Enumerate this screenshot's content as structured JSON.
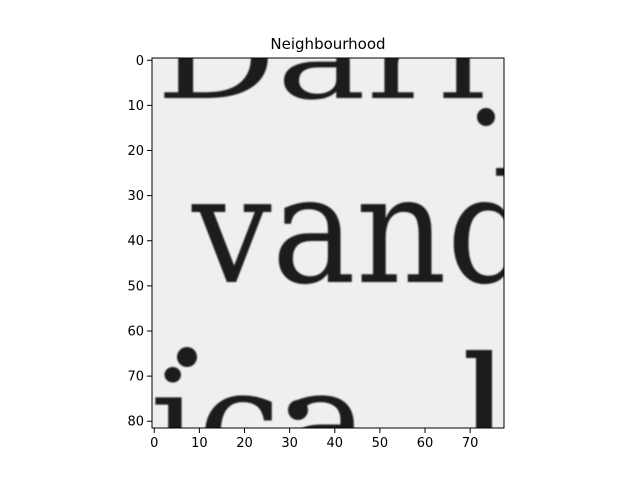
{
  "chart_data": {
    "type": "heatmap",
    "title": "Neighbourhood",
    "xlabel": "",
    "ylabel": "",
    "colormap": "gray",
    "xlim": [
      -0.5,
      77.5
    ],
    "ylim": [
      81.5,
      -0.5
    ],
    "xticks": [
      0,
      10,
      20,
      30,
      40,
      50,
      60,
      70
    ],
    "yticks": [
      0,
      10,
      20,
      30,
      40,
      50,
      60,
      70,
      80
    ],
    "grid": false,
    "background_color": "#efefef",
    "ink_color": "#1c1c1c"
  }
}
